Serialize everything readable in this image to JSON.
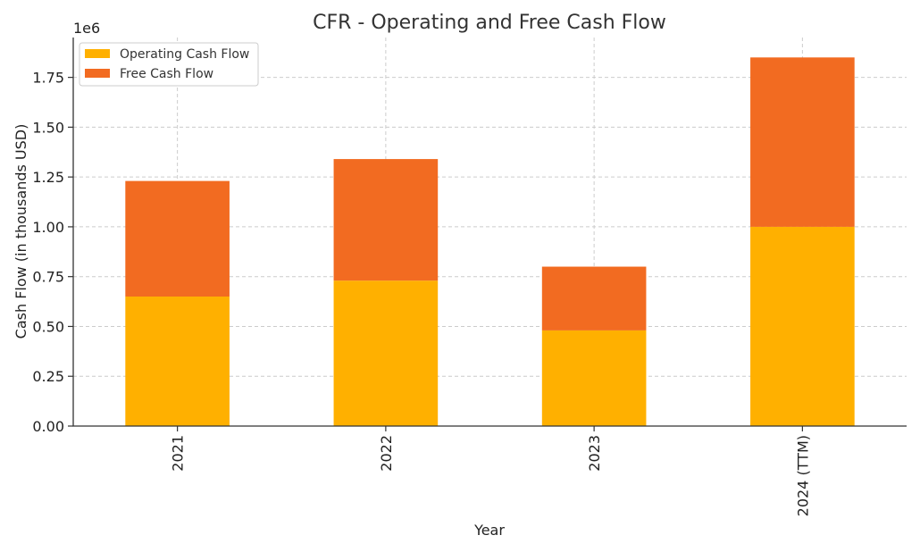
{
  "chart_data": {
    "type": "bar",
    "stacked": true,
    "title": "CFR - Operating and Free Cash Flow",
    "xlabel": "Year",
    "ylabel": "Cash Flow (in thousands USD)",
    "y_offset_label": "1e6",
    "categories": [
      "2021",
      "2022",
      "2023",
      "2024 (TTM)"
    ],
    "ylim": [
      0,
      1.95
    ],
    "yticks": [
      "0.00",
      "0.25",
      "0.50",
      "0.75",
      "1.00",
      "1.25",
      "1.50",
      "1.75"
    ],
    "grid": true,
    "legend_position": "top-left",
    "series": [
      {
        "name": "Operating Cash Flow",
        "color": "#FFB000",
        "values": [
          0.65,
          0.73,
          0.48,
          1.0
        ]
      },
      {
        "name": "Free Cash Flow",
        "color": "#F26B21",
        "values": [
          0.58,
          0.61,
          0.32,
          0.85
        ]
      }
    ]
  }
}
